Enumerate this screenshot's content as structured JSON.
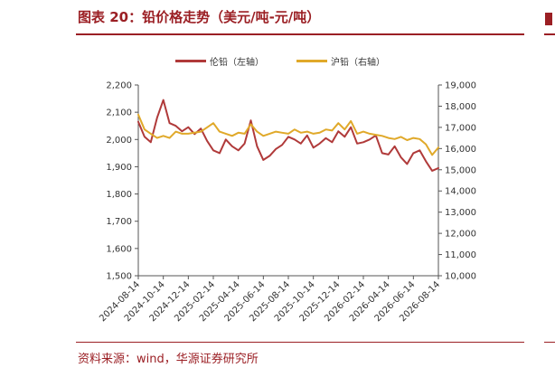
{
  "figure": {
    "title": "图表 20：铅价格走势（美元/吨-元/吨）",
    "source": "资料来源：wind，华源证券研究所"
  },
  "chart_data": {
    "type": "line",
    "legend_position": "top-center",
    "grid": false,
    "colors": {
      "lme": "#b03a3a",
      "shfe": "#e0a92a",
      "accent": "#9b1f24"
    },
    "x_labels": [
      "2024-08-14",
      "2024-10-14",
      "2024-12-14",
      "2025-02-14",
      "2025-04-14",
      "2025-06-14",
      "2025-08-14",
      "2025-10-14",
      "2025-12-14",
      "2026-02-14",
      "2026-04-14",
      "2026-06-14",
      "2026-08-14"
    ],
    "y_left": {
      "min": 1500,
      "max": 2200,
      "ticks": [
        "1,500",
        "1,600",
        "1,700",
        "1,800",
        "1,900",
        "2,000",
        "2,100",
        "2,200"
      ]
    },
    "y_right": {
      "min": 10000,
      "max": 19000,
      "ticks": [
        "10,000",
        "11,000",
        "12,000",
        "13,000",
        "14,000",
        "15,000",
        "16,000",
        "17,000",
        "18,000",
        "19,000"
      ]
    },
    "series": [
      {
        "name": "伦铅（左轴）",
        "axis": "left",
        "color": "#b03a3a",
        "x": [
          0,
          0.25,
          0.5,
          0.75,
          1,
          1.25,
          1.5,
          1.75,
          2,
          2.25,
          2.5,
          2.75,
          3,
          3.25,
          3.5,
          3.75,
          4,
          4.25,
          4.5,
          4.75,
          5,
          5.25,
          5.5,
          5.75,
          6,
          6.25,
          6.5,
          6.75,
          7,
          7.25,
          7.5,
          7.75,
          8,
          8.25,
          8.5,
          8.75,
          9,
          9.25,
          9.5,
          9.75,
          10,
          10.25,
          10.5,
          10.75,
          11,
          11.25,
          11.5,
          11.75,
          12
        ],
        "values": [
          2065,
          2010,
          1990,
          2080,
          2145,
          2060,
          2050,
          2030,
          2045,
          2020,
          2040,
          1995,
          1960,
          1950,
          2000,
          1975,
          1960,
          1985,
          2070,
          1975,
          1925,
          1940,
          1965,
          1980,
          2010,
          2000,
          1985,
          2015,
          1970,
          1985,
          2005,
          1990,
          2030,
          2010,
          2045,
          1985,
          1990,
          2000,
          2015,
          1950,
          1945,
          1975,
          1935,
          1910,
          1950,
          1960,
          1920,
          1885,
          1895
        ]
      },
      {
        "name": "沪铅（右轴）",
        "axis": "right",
        "color": "#e0a92a",
        "x": [
          0,
          0.25,
          0.5,
          0.75,
          1,
          1.25,
          1.5,
          1.75,
          2,
          2.25,
          2.5,
          2.75,
          3,
          3.25,
          3.5,
          3.75,
          4,
          4.25,
          4.5,
          4.75,
          5,
          5.25,
          5.5,
          5.75,
          6,
          6.25,
          6.5,
          6.75,
          7,
          7.25,
          7.5,
          7.75,
          8,
          8.25,
          8.5,
          8.75,
          9,
          9.25,
          9.5,
          9.75,
          10,
          10.25,
          10.5,
          10.75,
          11,
          11.25,
          11.5,
          11.75,
          12
        ],
        "values": [
          17600,
          16900,
          16700,
          16500,
          16600,
          16500,
          16800,
          16700,
          16700,
          16750,
          16800,
          17000,
          17200,
          16800,
          16700,
          16600,
          16750,
          16700,
          17150,
          16800,
          16600,
          16700,
          16800,
          16750,
          16700,
          16900,
          16750,
          16800,
          16700,
          16750,
          16900,
          16850,
          17200,
          16900,
          17300,
          16700,
          16800,
          16700,
          16650,
          16600,
          16500,
          16450,
          16550,
          16400,
          16500,
          16450,
          16200,
          15700,
          16050
        ]
      }
    ]
  },
  "legend": {
    "lme_label": "伦铅（左轴）",
    "shfe_label": "沪铅（右轴）"
  }
}
